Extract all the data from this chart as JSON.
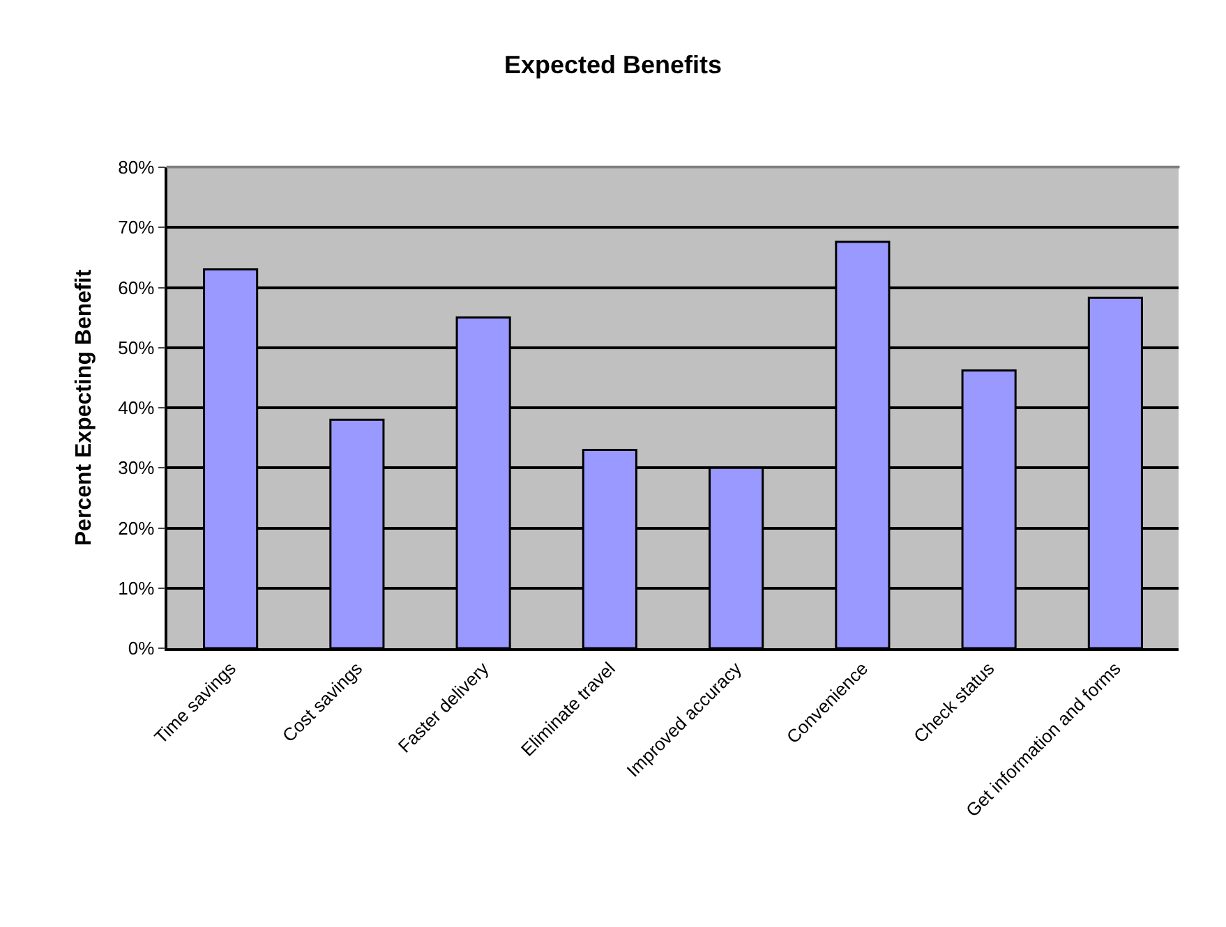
{
  "chart_data": {
    "type": "bar",
    "title": "Expected Benefits",
    "ylabel": "Percent Expecting Benefit",
    "categories": [
      "Time savings",
      "Cost savings",
      "Faster delivery",
      "Eliminate travel",
      "Improved accuracy",
      "Convenience",
      "Check status",
      "Get information and forms"
    ],
    "values": [
      63,
      38,
      55,
      33,
      30,
      67.6,
      46.2,
      58.3
    ],
    "color": "#9999ff",
    "ylim": [
      0,
      80
    ],
    "yticks": [
      {
        "value": 0,
        "label": "0%"
      },
      {
        "value": 10,
        "label": "10%"
      },
      {
        "value": 20,
        "label": "20%"
      },
      {
        "value": 30,
        "label": "30%"
      },
      {
        "value": 40,
        "label": "40%"
      },
      {
        "value": 50,
        "label": "50%"
      },
      {
        "value": 60,
        "label": "60%"
      },
      {
        "value": 70,
        "label": "70%"
      },
      {
        "value": 80,
        "label": "80%"
      }
    ],
    "grid": "y"
  }
}
